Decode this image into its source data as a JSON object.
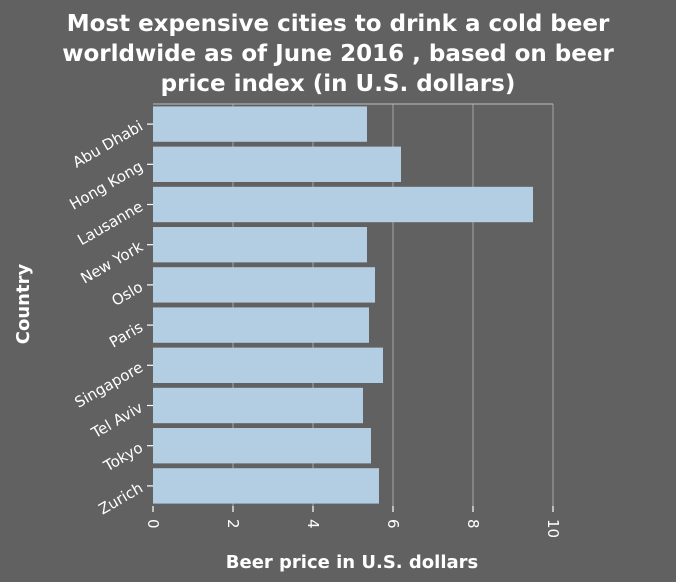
{
  "chart_data": {
    "type": "bar",
    "orientation": "horizontal",
    "title_lines": [
      "Most expensive cities to drink a cold beer",
      "worldwide as of June 2016 , based on beer",
      "price index (in U.S. dollars)"
    ],
    "xlabel": "Beer price in U.S. dollars",
    "ylabel": "Country",
    "categories": [
      "Abu Dhabi",
      "Hong Kong",
      "Lausanne",
      "New York",
      "Oslo",
      "Paris",
      "Singapore",
      "Tel Aviv",
      "Tokyo",
      "Zurich"
    ],
    "values": [
      5.35,
      6.2,
      9.5,
      5.35,
      5.55,
      5.4,
      5.75,
      5.25,
      5.45,
      5.65
    ],
    "xlim": [
      0,
      10
    ],
    "xticks": [
      0,
      2,
      4,
      6,
      8,
      10
    ],
    "grid": "vertical",
    "colors": {
      "background": "#616161",
      "bar": "#b3cde3",
      "grid": "#9a9a9a",
      "text": "#ffffff"
    }
  }
}
